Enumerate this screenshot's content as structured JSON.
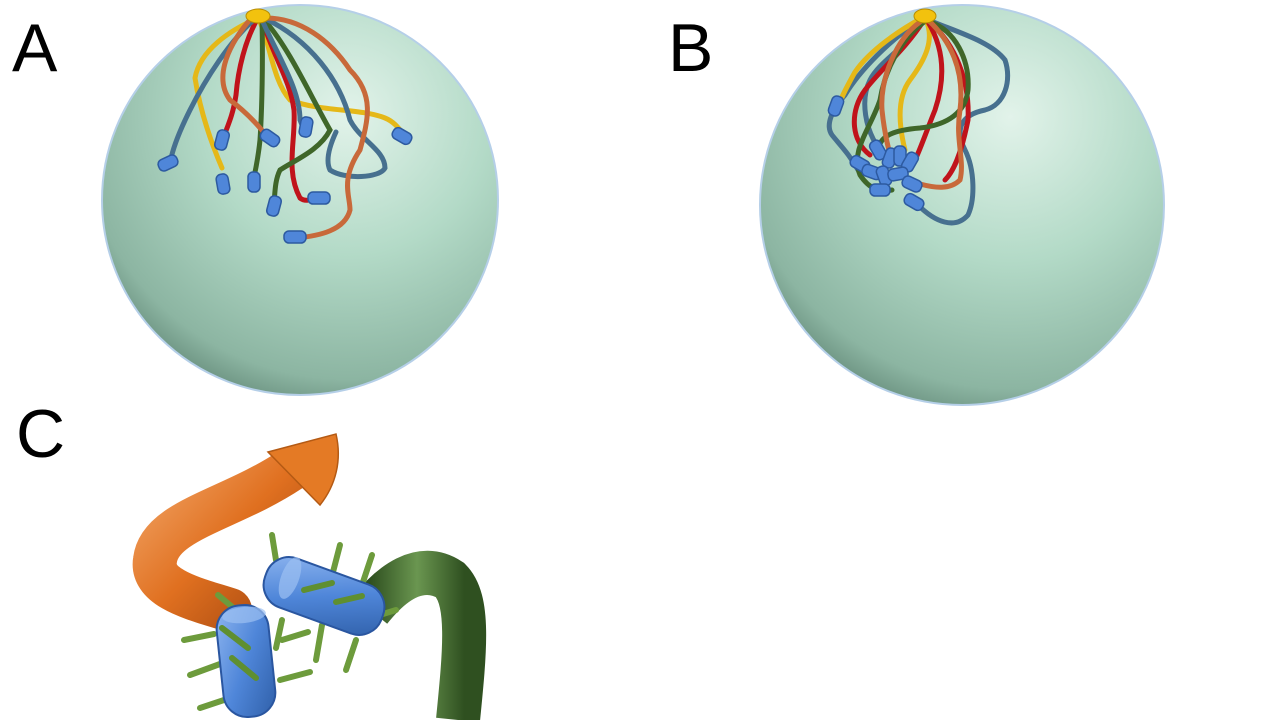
{
  "panels": {
    "a": {
      "label": "A"
    },
    "b": {
      "label": "B"
    },
    "c": {
      "label": "C"
    }
  },
  "colors": {
    "nucleus_light": "#cfeadd",
    "nucleus_mid": "#a9d3bf",
    "nucleus_dark": "#6f9583",
    "chromosome_yellow": "#e5b818",
    "chromosome_red": "#c0131b",
    "chromosome_green": "#3f6629",
    "chromosome_blue": "#47708f",
    "chromosome_orange": "#c8693a",
    "telomere_blue": "#4f86d9",
    "fiber_orange": "#e47a25",
    "fiber_green": "#46702e",
    "linker_green": "#6d9b3c"
  }
}
